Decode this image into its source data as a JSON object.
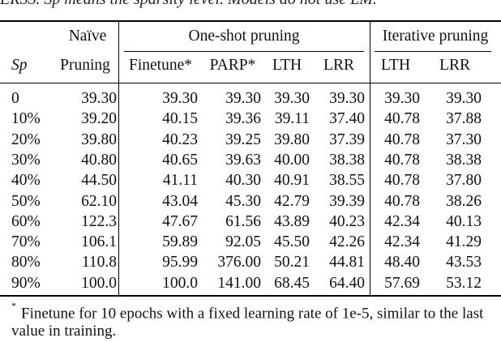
{
  "caption_fragment": "ERSS. Sp means the sparsity level. Models do not use LM.",
  "table": {
    "group_headers": [
      {
        "label": "Naïve"
      },
      {
        "label": "One-shot pruning"
      },
      {
        "label": "Iterative pruning"
      }
    ],
    "columns": [
      "Sp",
      "Pruning",
      "Finetune*",
      "PARP*",
      "LTH",
      "LRR",
      "LTH",
      "LRR"
    ],
    "rows": [
      [
        "0",
        "39.30",
        "39.30",
        "39.30",
        "39.30",
        "39.30",
        "39.30",
        "39.30"
      ],
      [
        "10%",
        "39.20",
        "40.15",
        "39.36",
        "39.11",
        "37.40",
        "40.78",
        "37.88"
      ],
      [
        "20%",
        "39.80",
        "40.23",
        "39.25",
        "39.80",
        "37.39",
        "40.78",
        "37.30"
      ],
      [
        "30%",
        "40.80",
        "40.65",
        "39.63",
        "40.00",
        "38.38",
        "40.78",
        "38.38"
      ],
      [
        "40%",
        "44.50",
        "41.11",
        "40.30",
        "40.91",
        "38.55",
        "40.78",
        "37.80"
      ],
      [
        "50%",
        "62.10",
        "43.04",
        "45.30",
        "42.79",
        "39.39",
        "40.78",
        "38.26"
      ],
      [
        "60%",
        "122.3",
        "47.67",
        "61.56",
        "43.89",
        "40.23",
        "42.34",
        "40.13"
      ],
      [
        "70%",
        "106.1",
        "59.89",
        "92.05",
        "45.50",
        "42.26",
        "42.34",
        "41.29"
      ],
      [
        "80%",
        "110.8",
        "95.99",
        "376.00",
        "50.21",
        "44.81",
        "48.40",
        "43.53"
      ],
      [
        "90%",
        "100.0",
        "100.0",
        "141.00",
        "68.45",
        "64.40",
        "57.69",
        "53.12"
      ]
    ]
  },
  "footnote": {
    "marker": "*",
    "text": "Finetune for 10 epochs with a fixed learning rate of 1e-5, similar to the last value in training."
  }
}
